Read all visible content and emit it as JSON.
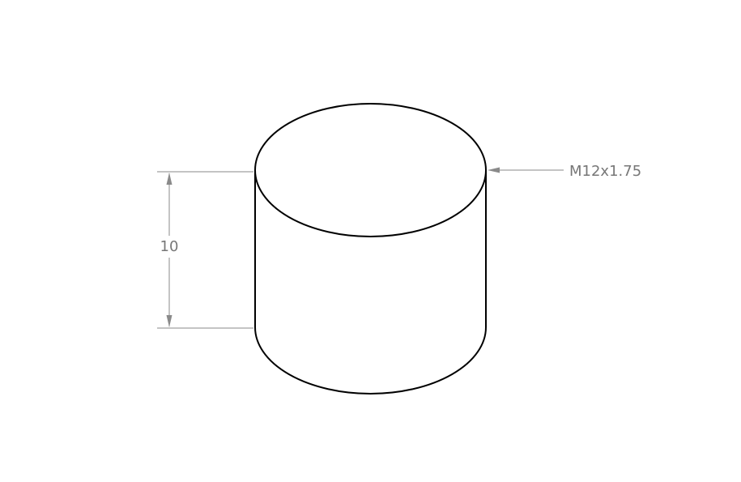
{
  "drawing": {
    "height_dimension": "10",
    "thread_callout": "M12x1.75"
  }
}
